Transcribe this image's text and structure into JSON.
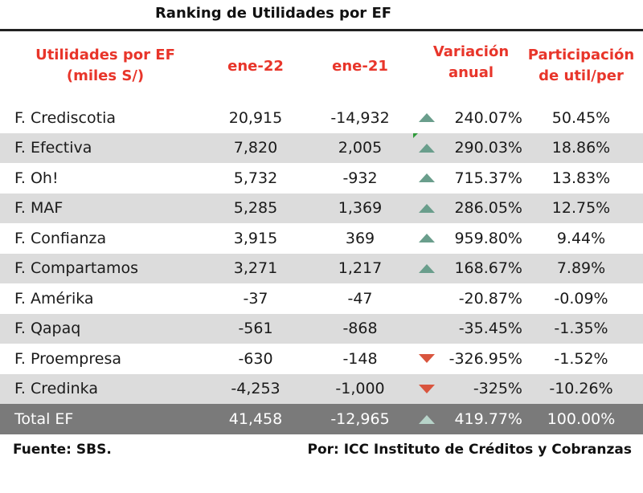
{
  "title": "Ranking de Utilidades por EF",
  "headers": {
    "col1_line1": "Utilidades por EF",
    "col1_line2": "(miles S/)",
    "col2": "ene-22",
    "col3": "ene-21",
    "col4_line1": "Variación",
    "col4_line2": "anual",
    "col5_line1": "Participación",
    "col5_line2": "de util/per"
  },
  "rows": [
    {
      "name": "F. Crediscotia",
      "cur": "20,915",
      "prev": "-14,932",
      "trend": "up-icon",
      "var": "240.07%",
      "part": "50.45%"
    },
    {
      "name": "F. Efectiva",
      "cur": "7,820",
      "prev": "2,005",
      "trend": "up-icon",
      "var": "290.03%",
      "part": "18.86%"
    },
    {
      "name": "F. Oh!",
      "cur": "5,732",
      "prev": "-932",
      "trend": "up-icon",
      "var": "715.37%",
      "part": "13.83%"
    },
    {
      "name": "F. MAF",
      "cur": "5,285",
      "prev": "1,369",
      "trend": "up-icon",
      "var": "286.05%",
      "part": "12.75%"
    },
    {
      "name": "F. Confianza",
      "cur": "3,915",
      "prev": "369",
      "trend": "up-icon",
      "var": "959.80%",
      "part": "9.44%"
    },
    {
      "name": "F. Compartamos",
      "cur": "3,271",
      "prev": "1,217",
      "trend": "up-icon",
      "var": "168.67%",
      "part": "7.89%"
    },
    {
      "name": "F. Amérika",
      "cur": "-37",
      "prev": "-47",
      "trend": "",
      "var": "-20.87%",
      "part": "-0.09%"
    },
    {
      "name": "F. Qapaq",
      "cur": "-561",
      "prev": "-868",
      "trend": "",
      "var": "-35.45%",
      "part": "-1.35%"
    },
    {
      "name": "F. Proempresa",
      "cur": "-630",
      "prev": "-148",
      "trend": "down-icon",
      "var": "-326.95%",
      "part": "-1.52%"
    },
    {
      "name": "F. Credinka",
      "cur": "-4,253",
      "prev": "-1,000",
      "trend": "down-icon",
      "var": "-325%",
      "part": "-10.26%"
    }
  ],
  "total": {
    "name": "Total EF",
    "cur": "41,458",
    "prev": "-12,965",
    "trend": "up-icon",
    "var": "419.77%",
    "part": "100.00%"
  },
  "footer": {
    "source": "Fuente: SBS.",
    "credit": "Por: ICC Instituto de Créditos y Cobranzas"
  },
  "colors": {
    "accent": "#e8352a",
    "up": "#6a9e8c",
    "down": "#d9553e",
    "alt_row": "#dcdcdc",
    "total_row": "#7a7a7a"
  }
}
